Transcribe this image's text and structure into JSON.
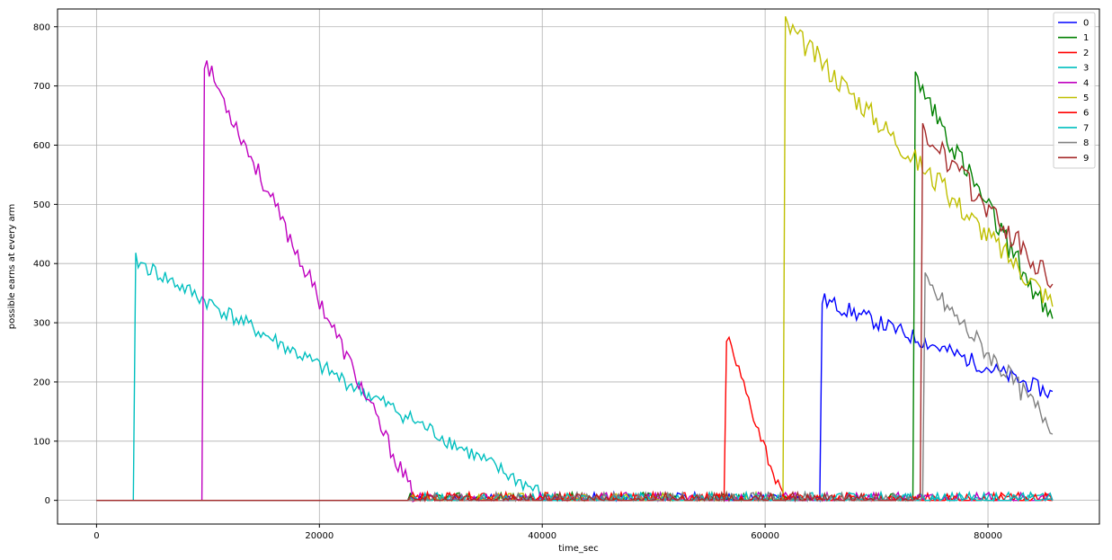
{
  "chart_data": {
    "type": "line",
    "title": "",
    "xlabel": "time_sec",
    "ylabel": "possible earns at every arm",
    "xlim": [
      -3500,
      90000
    ],
    "ylim": [
      -40,
      830
    ],
    "xticks": [
      0,
      20000,
      40000,
      60000,
      80000
    ],
    "yticks": [
      0,
      100,
      200,
      300,
      400,
      500,
      600,
      700,
      800
    ],
    "grid": true,
    "legend_position": "top-right",
    "series": [
      {
        "name": "0",
        "color": "#0000ff",
        "start": 65000,
        "start_value": 340,
        "end": 86000,
        "end_value": 178,
        "noise": 14,
        "seed": 11
      },
      {
        "name": "1",
        "color": "#008000",
        "start": 73300,
        "start_value": 720,
        "end": 86000,
        "end_value": 290,
        "noise": 22,
        "seed": 23
      },
      {
        "name": "2",
        "color": "#ff0000",
        "start": 56400,
        "start_value": 288,
        "end": 61400,
        "end_value": 12,
        "noise": 14,
        "seed": 37
      },
      {
        "name": "3",
        "color": "#00bfbf",
        "start": 3500,
        "start_value": 405,
        "end": 40000,
        "end_value": 10,
        "noise": 14,
        "seed": 41
      },
      {
        "name": "4",
        "color": "#bf00bf",
        "start": 9500,
        "start_value": 752,
        "end": 28500,
        "end_value": 5,
        "noise": 16,
        "seed": 53
      },
      {
        "name": "5",
        "color": "#bfbf00",
        "start": 61800,
        "start_value": 805,
        "end": 86000,
        "end_value": 330,
        "noise": 20,
        "seed": 67
      },
      {
        "name": "6",
        "color": "#ff0000",
        "start": 86000,
        "start_value": 0,
        "end": 86000,
        "end_value": 0,
        "noise": 0,
        "seed": 71
      },
      {
        "name": "7",
        "color": "#00bfbf",
        "start": 86000,
        "start_value": 0,
        "end": 86000,
        "end_value": 0,
        "noise": 0,
        "seed": 79
      },
      {
        "name": "8",
        "color": "#808080",
        "start": 74300,
        "start_value": 370,
        "end": 86000,
        "end_value": 122,
        "noise": 18,
        "seed": 83
      },
      {
        "name": "9",
        "color": "#a52a2a",
        "start": 74100,
        "start_value": 625,
        "end": 86000,
        "end_value": 360,
        "noise": 22,
        "seed": 97
      }
    ]
  }
}
